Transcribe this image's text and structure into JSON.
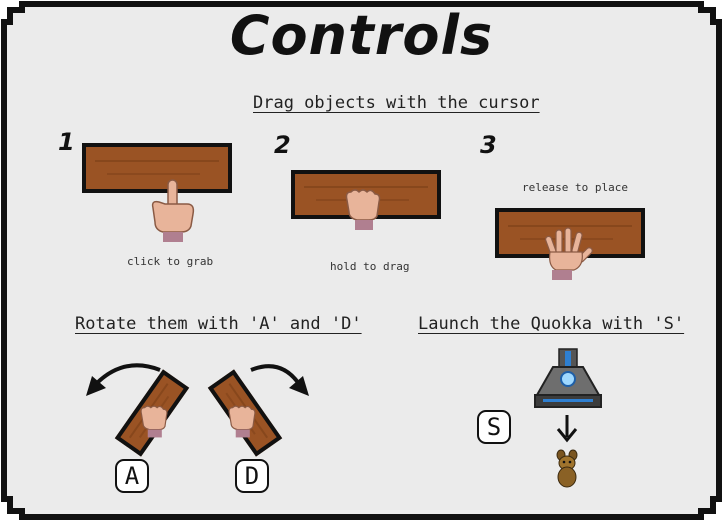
{
  "title": "Controls",
  "sections": {
    "drag": {
      "heading": "Drag objects with the cursor",
      "steps": [
        {
          "number": "1",
          "caption": "click to grab"
        },
        {
          "number": "2",
          "caption": "hold to drag"
        },
        {
          "number": "3",
          "caption": "release to place"
        }
      ]
    },
    "rotate": {
      "heading": "Rotate them with 'A' and 'D'",
      "keys": [
        "A",
        "D"
      ]
    },
    "launch": {
      "heading": "Launch the Quokka with 'S'",
      "key": "S"
    }
  },
  "colors": {
    "background": "#ebebeb",
    "border": "#111111",
    "wood": "#9a5324",
    "hand": "#e8b49a"
  },
  "icons": [
    "pointing-hand-icon",
    "grabbing-hand-icon",
    "open-hand-icon",
    "rotate-left-arrow-icon",
    "rotate-right-arrow-icon",
    "launcher-icon",
    "down-arrow-icon",
    "quokka-icon"
  ]
}
